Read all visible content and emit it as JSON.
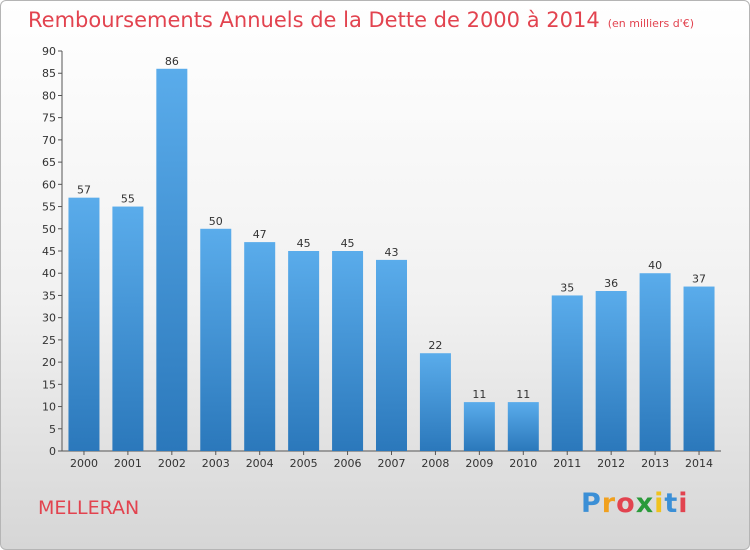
{
  "header": {
    "title": "Remboursements Annuels de la Dette de 2000 à 2014",
    "unit": "(en milliers d'€)"
  },
  "footer": {
    "place": "MELLERAN",
    "logo": "Proxiti"
  },
  "colors": {
    "accent": "#e2434f",
    "bar_top": "#5aaceb",
    "bar_bottom": "#2b78bb"
  },
  "chart_data": {
    "type": "bar",
    "title": "Remboursements Annuels de la Dette de 2000 à 2014",
    "xlabel": "",
    "ylabel": "",
    "categories": [
      "2000",
      "2001",
      "2002",
      "2003",
      "2004",
      "2005",
      "2006",
      "2007",
      "2008",
      "2009",
      "2010",
      "2011",
      "2012",
      "2013",
      "2014"
    ],
    "values": [
      57,
      55,
      86,
      50,
      47,
      45,
      45,
      43,
      22,
      11,
      11,
      35,
      36,
      40,
      37
    ],
    "ylim": [
      0,
      90
    ],
    "yticks": [
      0,
      5,
      10,
      15,
      20,
      25,
      30,
      35,
      40,
      45,
      50,
      55,
      60,
      65,
      70,
      75,
      80,
      85,
      90
    ],
    "grid": false,
    "legend": "none"
  }
}
